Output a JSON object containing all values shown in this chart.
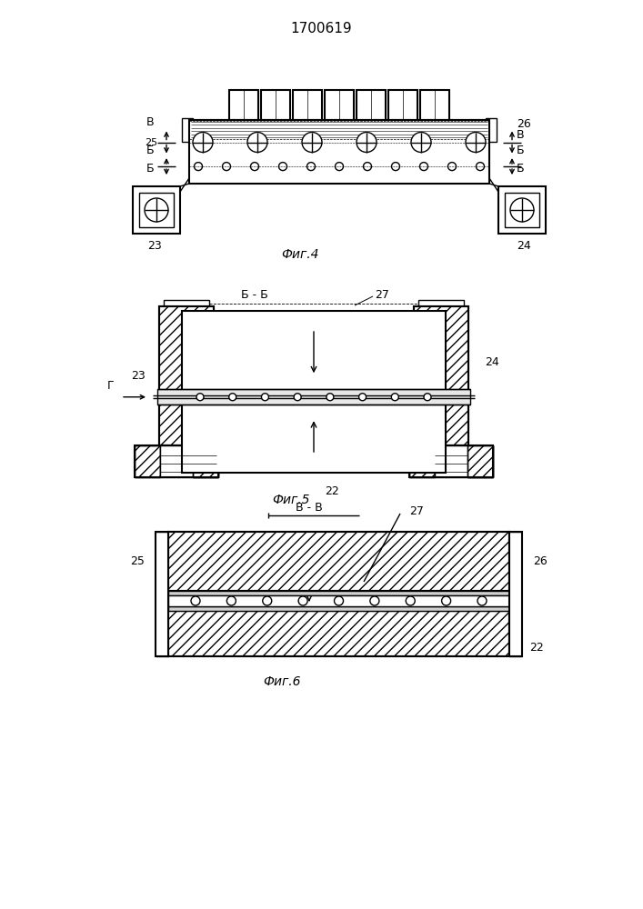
{
  "title": "1700619",
  "fig4_caption": "Фиг.4",
  "fig5_caption": "Фиг.5",
  "fig6_caption": "Фиг.6",
  "bg_color": "#ffffff",
  "line_color": "#000000"
}
